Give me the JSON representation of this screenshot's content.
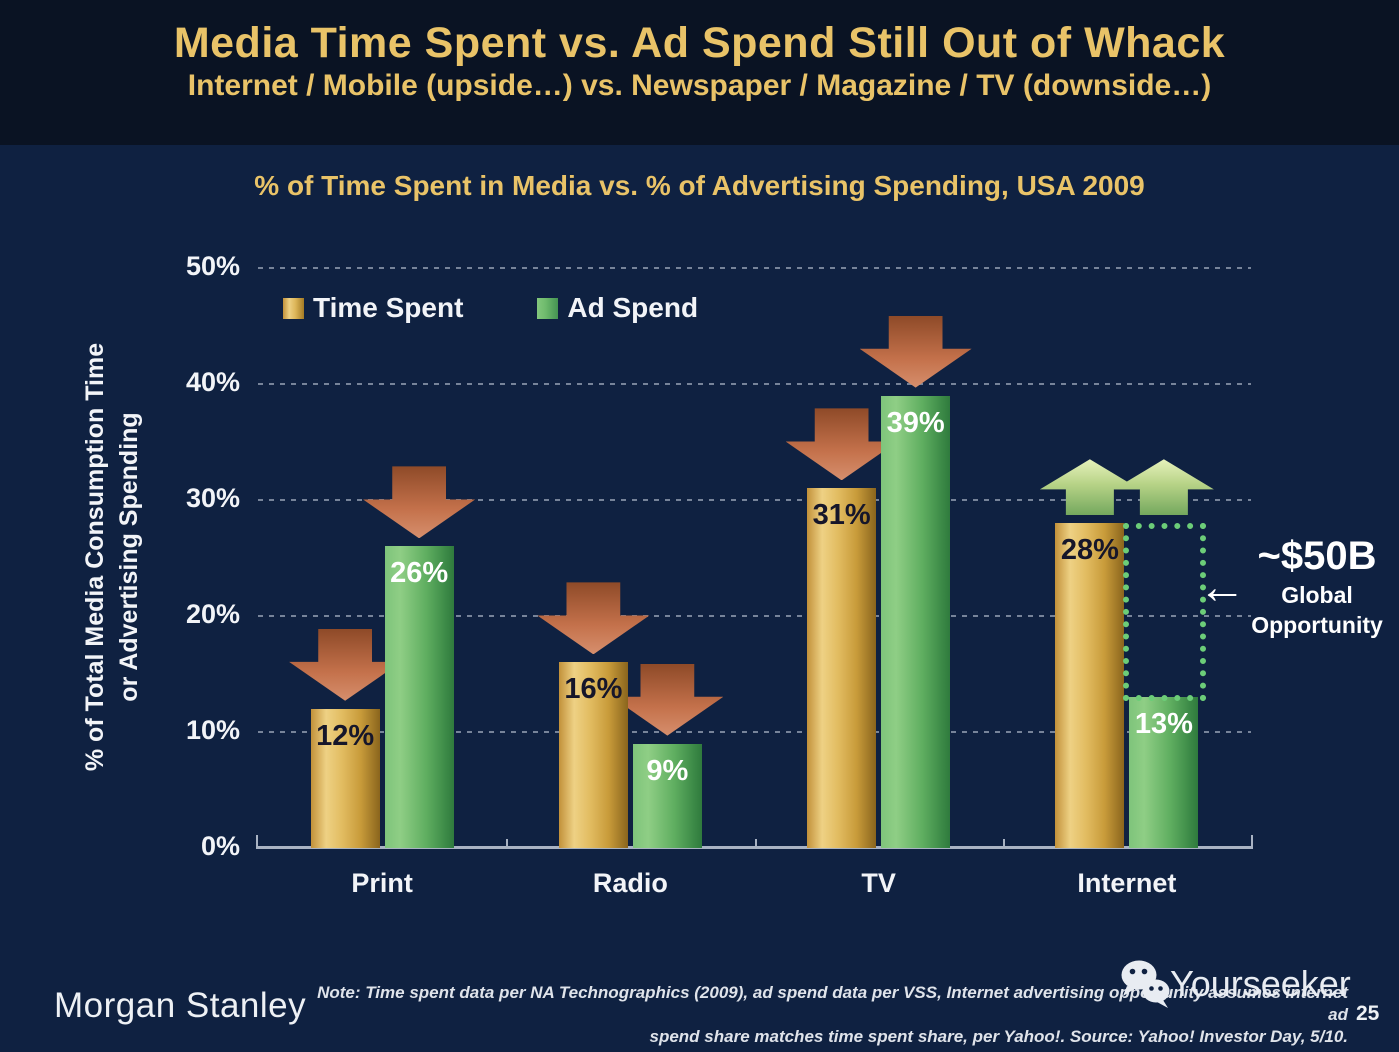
{
  "header": {
    "title": "Media Time Spent vs. Ad Spend Still Out of Whack",
    "subtitle": "Internet / Mobile (upside…) vs. Newspaper / Magazine / TV (downside…)"
  },
  "chart_data": {
    "type": "bar",
    "title": "% of Time Spent in Media vs. % of Advertising Spending, USA 2009",
    "categories": [
      "Print",
      "Radio",
      "TV",
      "Internet"
    ],
    "series": [
      {
        "name": "Time Spent",
        "color_key": "gold",
        "values": [
          12,
          16,
          31,
          28
        ],
        "trends": [
          "down",
          "down",
          "down",
          "up"
        ]
      },
      {
        "name": "Ad Spend",
        "color_key": "green",
        "values": [
          26,
          9,
          39,
          13
        ],
        "trends": [
          "down",
          "down",
          "down",
          "up"
        ]
      }
    ],
    "value_suffix": "%",
    "ylabel_line1": "% of Total Media Consumption Time",
    "ylabel_line2": "or Advertising Spending",
    "yticks": [
      0,
      10,
      20,
      30,
      40,
      50
    ],
    "ytick_suffix": "%",
    "ylim": [
      0,
      50
    ],
    "grid": "horizontal dashed",
    "legend_position": "top-left inside plot",
    "colors": {
      "gold_bar": "#d9ab4a",
      "green_bar": "#5aaf5f",
      "down_arrow": "#c4714b",
      "up_arrow": "#a8cc7d",
      "background": "#0f2141",
      "header_background": "#0a1323",
      "title_gold": "#e9c368",
      "text_white": "#f2f4f8",
      "opportunity_box": "#6ccd78"
    }
  },
  "annotation": {
    "arrow_glyph": "←",
    "value": "~$50B",
    "line1": "Global",
    "line2": "Opportunity",
    "box_note": "dotted box spans 13% to 28% over Internet Ad Spend bar"
  },
  "footer": {
    "brand": "Morgan Stanley",
    "note_line1": "Note: Time spent data per NA Technographics (2009), ad spend data per VSS, Internet advertising opportunity assumes internet ad",
    "note_line2": "spend share matches time spent share, per Yahoo!. Source: Yahoo! Investor Day, 5/10.",
    "watermark": "Yourseeker",
    "page_number": "25"
  }
}
